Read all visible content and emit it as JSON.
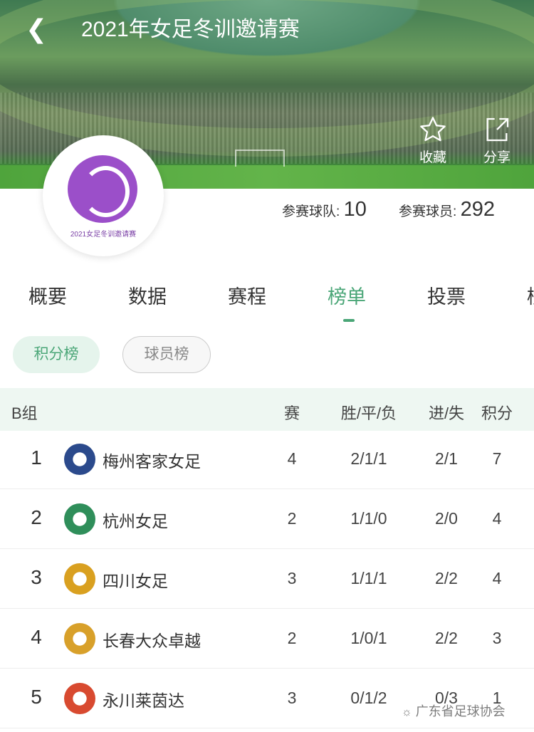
{
  "header": {
    "title": "2021年女足冬训邀请赛",
    "back_icon": "chevron-left-icon",
    "favorite_label": "收藏",
    "share_label": "分享"
  },
  "logo": {
    "text": "2021女足冬训邀请赛",
    "color": "#9b4fc9"
  },
  "stats": {
    "teams_label": "参赛球队:",
    "teams": "10",
    "players_label": "参赛球员:",
    "players": "292"
  },
  "tabs": [
    {
      "label": "概要"
    },
    {
      "label": "数据"
    },
    {
      "label": "赛程"
    },
    {
      "label": "榜单",
      "active": true
    },
    {
      "label": "投票"
    },
    {
      "label": "榜"
    }
  ],
  "subtabs": [
    {
      "label": "积分榜",
      "active": true
    },
    {
      "label": "球员榜"
    }
  ],
  "accent": "#4aa677",
  "table": {
    "group": "B组",
    "columns": [
      "赛",
      "胜/平/负",
      "进/失",
      "积分"
    ],
    "rows": [
      {
        "rank": "1",
        "team": "梅州客家女足",
        "played": "4",
        "wdl": "2/1/1",
        "goals": "2/1",
        "points": "7",
        "badge_color": "#2b4a8c"
      },
      {
        "rank": "2",
        "team": "杭州女足",
        "played": "2",
        "wdl": "1/1/0",
        "goals": "2/0",
        "points": "4",
        "badge_color": "#2f8e5a"
      },
      {
        "rank": "3",
        "team": "四川女足",
        "played": "3",
        "wdl": "1/1/1",
        "goals": "2/2",
        "points": "4",
        "badge_color": "#d9a020"
      },
      {
        "rank": "4",
        "team": "长春大众卓越",
        "played": "2",
        "wdl": "1/0/1",
        "goals": "2/2",
        "points": "3",
        "badge_color": "#d8a02a"
      },
      {
        "rank": "5",
        "team": "永川莱茵达",
        "played": "3",
        "wdl": "0/1/2",
        "goals": "0/3",
        "points": "1",
        "badge_color": "#d84a30"
      }
    ]
  },
  "watermark": "广东省足球协会"
}
